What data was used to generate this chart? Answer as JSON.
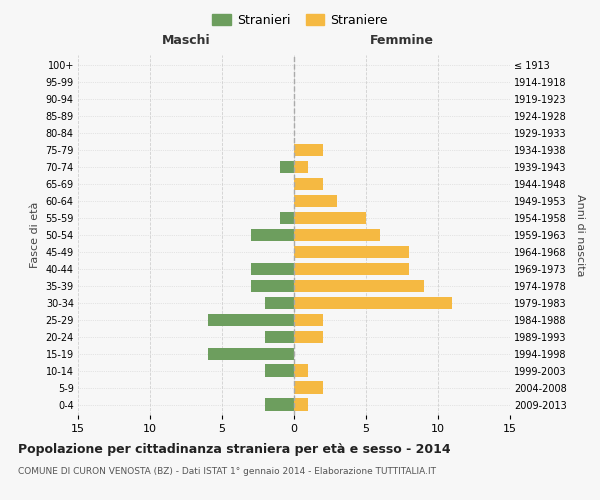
{
  "age_groups": [
    "0-4",
    "5-9",
    "10-14",
    "15-19",
    "20-24",
    "25-29",
    "30-34",
    "35-39",
    "40-44",
    "45-49",
    "50-54",
    "55-59",
    "60-64",
    "65-69",
    "70-74",
    "75-79",
    "80-84",
    "85-89",
    "90-94",
    "95-99",
    "100+"
  ],
  "birth_years": [
    "2009-2013",
    "2004-2008",
    "1999-2003",
    "1994-1998",
    "1989-1993",
    "1984-1988",
    "1979-1983",
    "1974-1978",
    "1969-1973",
    "1964-1968",
    "1959-1963",
    "1954-1958",
    "1949-1953",
    "1944-1948",
    "1939-1943",
    "1934-1938",
    "1929-1933",
    "1924-1928",
    "1919-1923",
    "1914-1918",
    "≤ 1913"
  ],
  "males": [
    2,
    0,
    2,
    6,
    2,
    6,
    2,
    3,
    3,
    0,
    3,
    1,
    0,
    0,
    1,
    0,
    0,
    0,
    0,
    0,
    0
  ],
  "females": [
    1,
    2,
    1,
    0,
    2,
    2,
    11,
    9,
    8,
    8,
    6,
    5,
    3,
    2,
    1,
    2,
    0,
    0,
    0,
    0,
    0
  ],
  "male_color": "#6d9e5e",
  "female_color": "#f5b942",
  "background_color": "#f7f7f7",
  "grid_color": "#d0d0d0",
  "title": "Popolazione per cittadinanza straniera per età e sesso - 2014",
  "subtitle": "COMUNE DI CURON VENOSTA (BZ) - Dati ISTAT 1° gennaio 2014 - Elaborazione TUTTITALIA.IT",
  "legend_males": "Stranieri",
  "legend_females": "Straniere",
  "xlabel_left": "Maschi",
  "xlabel_right": "Femmine",
  "ylabel_left": "Fasce di età",
  "ylabel_right": "Anni di nascita",
  "xlim": 15
}
